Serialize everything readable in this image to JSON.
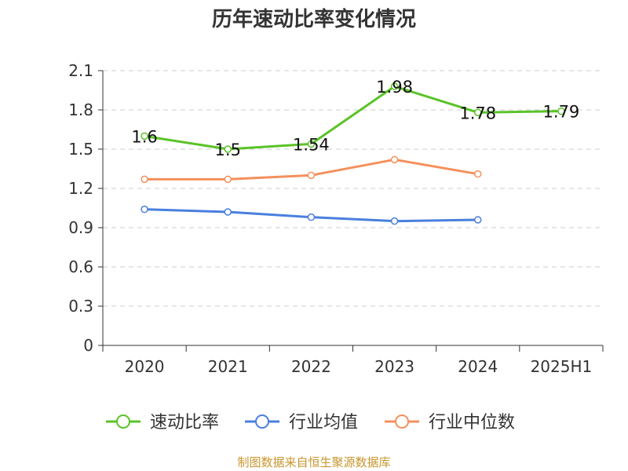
{
  "chart_data": {
    "type": "line",
    "title": "历年速动比率变化情况",
    "categories": [
      "2020",
      "2021",
      "2022",
      "2023",
      "2024",
      "2025H1"
    ],
    "ylim": [
      0,
      2.1
    ],
    "yticks": [
      "0",
      "0.3",
      "0.6",
      "0.9",
      "1.2",
      "1.5",
      "1.8",
      "2.1"
    ],
    "grid": true,
    "legend_position": "bottom",
    "series": [
      {
        "name": "速动比率",
        "color": "#5ac328",
        "values": [
          1.6,
          1.5,
          1.54,
          1.98,
          1.78,
          1.79
        ],
        "labels": [
          "1.6",
          "1.5",
          "1.54",
          "1.98",
          "1.78",
          "1.79"
        ]
      },
      {
        "name": "行业均值",
        "color": "#4a7fde",
        "values": [
          1.04,
          1.02,
          0.98,
          0.95,
          0.96,
          null
        ]
      },
      {
        "name": "行业中位数",
        "color": "#f4905c",
        "values": [
          1.27,
          1.27,
          1.3,
          1.42,
          1.31,
          null
        ]
      }
    ]
  },
  "footer": "制图数据来自恒生聚源数据库"
}
